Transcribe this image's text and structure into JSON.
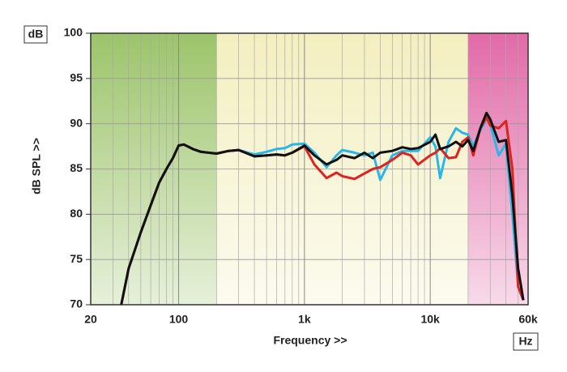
{
  "chart_data": {
    "type": "line",
    "xlabel": "Frequency >>",
    "ylabel": "dB SPL >>",
    "y_unit": "dB",
    "x_unit": "Hz",
    "log_x": true,
    "grid": true,
    "xlim": [
      20,
      60000
    ],
    "ylim": [
      70,
      100
    ],
    "xticks": [
      20,
      100,
      {
        "value": 1000,
        "label": "1k"
      },
      {
        "value": 10000,
        "label": "10k"
      },
      {
        "value": 60000,
        "label": "60k"
      }
    ],
    "minor_xticks": [
      30,
      40,
      50,
      60,
      70,
      80,
      90,
      200,
      300,
      400,
      500,
      600,
      700,
      800,
      900,
      2000,
      3000,
      4000,
      5000,
      6000,
      7000,
      8000,
      9000,
      20000,
      30000,
      40000,
      50000
    ],
    "yticks": [
      70,
      75,
      80,
      85,
      90,
      95,
      100
    ],
    "bands": [
      {
        "from": 20,
        "to": 200,
        "color": "#9cc46a"
      },
      {
        "from": 200,
        "to": 20000,
        "color": "#f3efc0"
      },
      {
        "from": 20000,
        "to": 60000,
        "color": "#e26aa8"
      }
    ],
    "x": [
      35,
      40,
      50,
      60,
      70,
      80,
      90,
      100,
      110,
      130,
      150,
      200,
      250,
      300,
      400,
      500,
      600,
      700,
      800,
      1000,
      1200,
      1500,
      1800,
      2000,
      2500,
      3000,
      3500,
      4000,
      5000,
      6000,
      7000,
      8000,
      10000,
      11000,
      12000,
      14000,
      16000,
      18000,
      20000,
      22000,
      25000,
      28000,
      30000,
      35000,
      40000,
      45000,
      50000,
      55000
    ],
    "series": [
      {
        "color": "#29b6e8",
        "values": [
          70,
          74,
          78,
          81,
          83.5,
          85,
          86.2,
          87.6,
          87.7,
          87.2,
          86.9,
          86.7,
          87,
          87.1,
          86.6,
          86.9,
          87.2,
          87.3,
          87.7,
          87.8,
          86.8,
          85.2,
          86.5,
          87.1,
          86.8,
          86.5,
          86.8,
          83.8,
          86.5,
          87,
          87,
          87,
          88.5,
          87.5,
          84,
          88,
          89.5,
          89,
          88.8,
          87.5,
          89.3,
          90.5,
          90,
          86.5,
          87.8,
          80,
          72,
          70.5
        ]
      },
      {
        "color": "#e0221e",
        "values": [
          70,
          74,
          78,
          81,
          83.5,
          85,
          86.2,
          87.6,
          87.7,
          87.2,
          86.9,
          86.7,
          87,
          87.1,
          86.4,
          86.5,
          86.6,
          86.5,
          86.8,
          87.5,
          85.5,
          84,
          84.6,
          84.2,
          83.9,
          84.5,
          85,
          85.2,
          86,
          86.8,
          86.5,
          85.5,
          86.5,
          86.8,
          87.3,
          86.2,
          86.3,
          88,
          88.5,
          86.5,
          89.5,
          90.7,
          89.8,
          89.5,
          90.3,
          85,
          72,
          70.5
        ]
      },
      {
        "color": "#111111",
        "values": [
          70,
          74,
          78,
          81,
          83.5,
          85,
          86.2,
          87.6,
          87.7,
          87.2,
          86.9,
          86.7,
          87,
          87.1,
          86.4,
          86.5,
          86.6,
          86.5,
          86.8,
          87.6,
          86.5,
          85.5,
          86,
          86.5,
          86.2,
          86.8,
          86.2,
          86.8,
          87,
          87.4,
          87.2,
          87.3,
          88,
          88.8,
          87.2,
          87.5,
          88,
          87.5,
          88.2,
          87,
          89.5,
          91.2,
          90.5,
          88,
          88.2,
          82,
          74,
          70.5
        ]
      }
    ]
  }
}
